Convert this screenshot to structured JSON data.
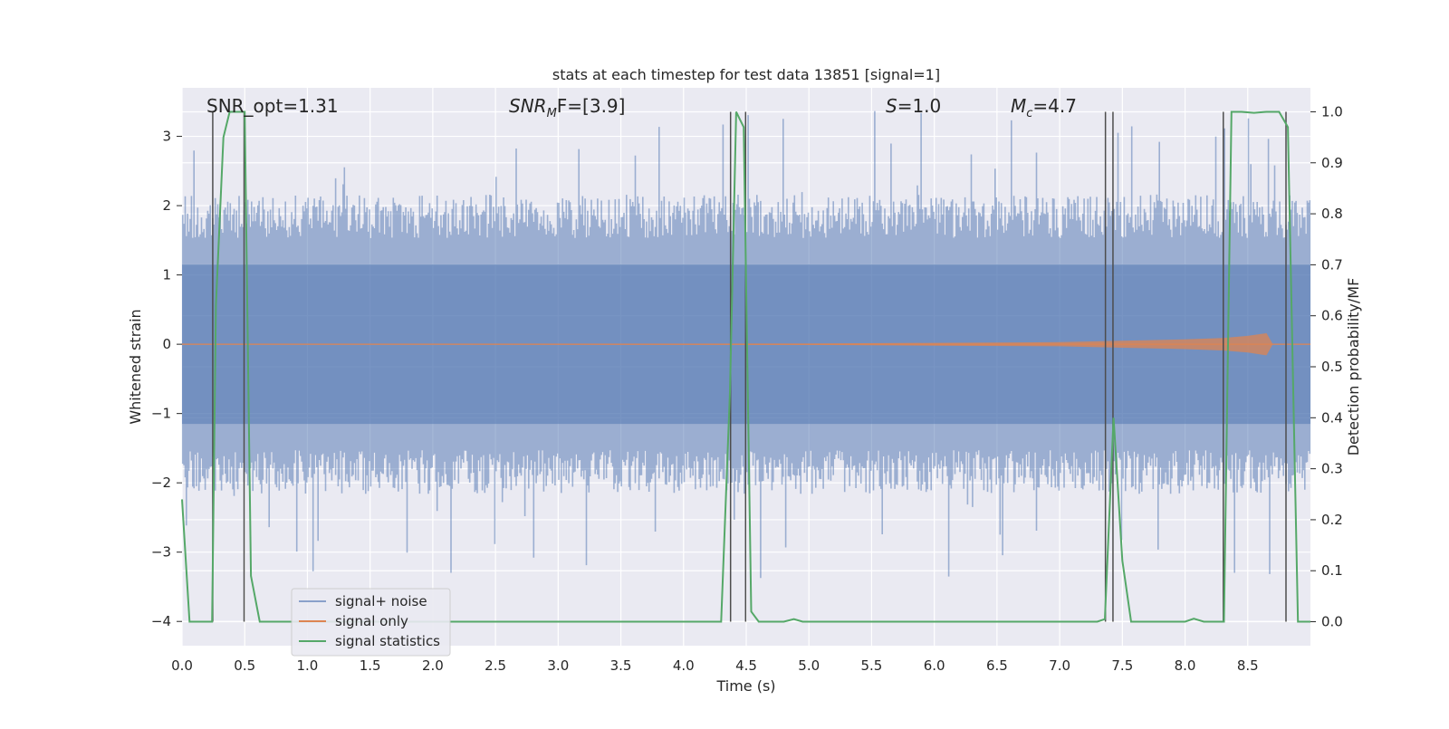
{
  "chart_data": {
    "type": "line",
    "title": "stats at each timestep for test data 13851 [signal=1]",
    "xlabel": "Time (s)",
    "ylabel_left": "Whitened strain",
    "ylabel_right": "Detection probability/MF",
    "xlim": [
      0.0,
      9.0
    ],
    "ylim_left": [
      -4.35,
      3.7
    ],
    "ylim_right": [
      -0.047,
      1.047
    ],
    "x_ticks": [
      "0.0",
      "0.5",
      "1.0",
      "1.5",
      "2.0",
      "2.5",
      "3.0",
      "3.5",
      "4.0",
      "4.5",
      "5.0",
      "5.5",
      "6.0",
      "6.5",
      "7.0",
      "7.5",
      "8.0",
      "8.5"
    ],
    "y_ticks_left": [
      "3",
      "2",
      "1",
      "0",
      "−1",
      "−2",
      "−3",
      "−4"
    ],
    "y_ticks_right": [
      "1.0",
      "0.9",
      "0.8",
      "0.7",
      "0.6",
      "0.5",
      "0.4",
      "0.3",
      "0.2",
      "0.1",
      "0.0"
    ],
    "grid": true,
    "legend_position": "lower-left",
    "annotations": [
      {
        "pre": "SNR_opt=1.31",
        "sub": "",
        "post": ""
      },
      {
        "pre": "SNR",
        "sub": "M",
        "post": "F=[3.9]",
        "italic_pre": true
      },
      {
        "pre": "S",
        "sub": "",
        "post": "=1.0",
        "italic_pre": true
      },
      {
        "pre": "M",
        "sub": "c",
        "post": "=4.7",
        "italic_pre": true
      }
    ],
    "series": [
      {
        "name": "signal+ noise",
        "color": "#4c72b0",
        "description_axis": "left",
        "envelope": {
          "typical_abs": 1.8,
          "max_abs": 3.4,
          "sample_count": 900
        }
      },
      {
        "name": "signal only",
        "color": "#dd8452",
        "description_axis": "left",
        "x": [
          0.0,
          5.0,
          6.0,
          7.0,
          7.5,
          8.0,
          8.3,
          8.5,
          8.65,
          8.7,
          9.0
        ],
        "amplitude": [
          0.0,
          0.01,
          0.02,
          0.03,
          0.05,
          0.07,
          0.09,
          0.12,
          0.16,
          0.0,
          0.0
        ]
      },
      {
        "name": "signal statistics",
        "color": "#55a868",
        "description_axis": "right",
        "x": [
          0.0,
          0.06,
          0.24,
          0.27,
          0.33,
          0.38,
          0.5,
          0.55,
          0.62,
          1.0,
          4.3,
          4.37,
          4.42,
          4.48,
          4.54,
          4.6,
          4.8,
          4.88,
          4.95,
          5.0,
          7.3,
          7.36,
          7.43,
          7.5,
          7.57,
          7.7,
          8.0,
          8.07,
          8.15,
          8.25,
          8.31,
          8.37,
          8.45,
          8.55,
          8.65,
          8.75,
          8.82,
          8.9,
          9.0
        ],
        "y": [
          0.24,
          0.0,
          0.0,
          0.62,
          0.95,
          1.0,
          1.0,
          0.09,
          0.0,
          0.0,
          0.0,
          0.45,
          1.0,
          0.97,
          0.02,
          0.0,
          0.0,
          0.005,
          0.0,
          0.0,
          0.0,
          0.005,
          0.4,
          0.12,
          0.0,
          0.0,
          0.0,
          0.006,
          0.0,
          0.0,
          0.0,
          1.0,
          1.0,
          0.998,
          1.0,
          1.0,
          0.97,
          0.0,
          0.0
        ]
      }
    ],
    "vertical_markers": {
      "color": "#4d4d4d",
      "x": [
        0.245,
        0.495,
        4.375,
        4.495,
        7.365,
        7.425,
        8.305,
        8.805
      ]
    }
  }
}
